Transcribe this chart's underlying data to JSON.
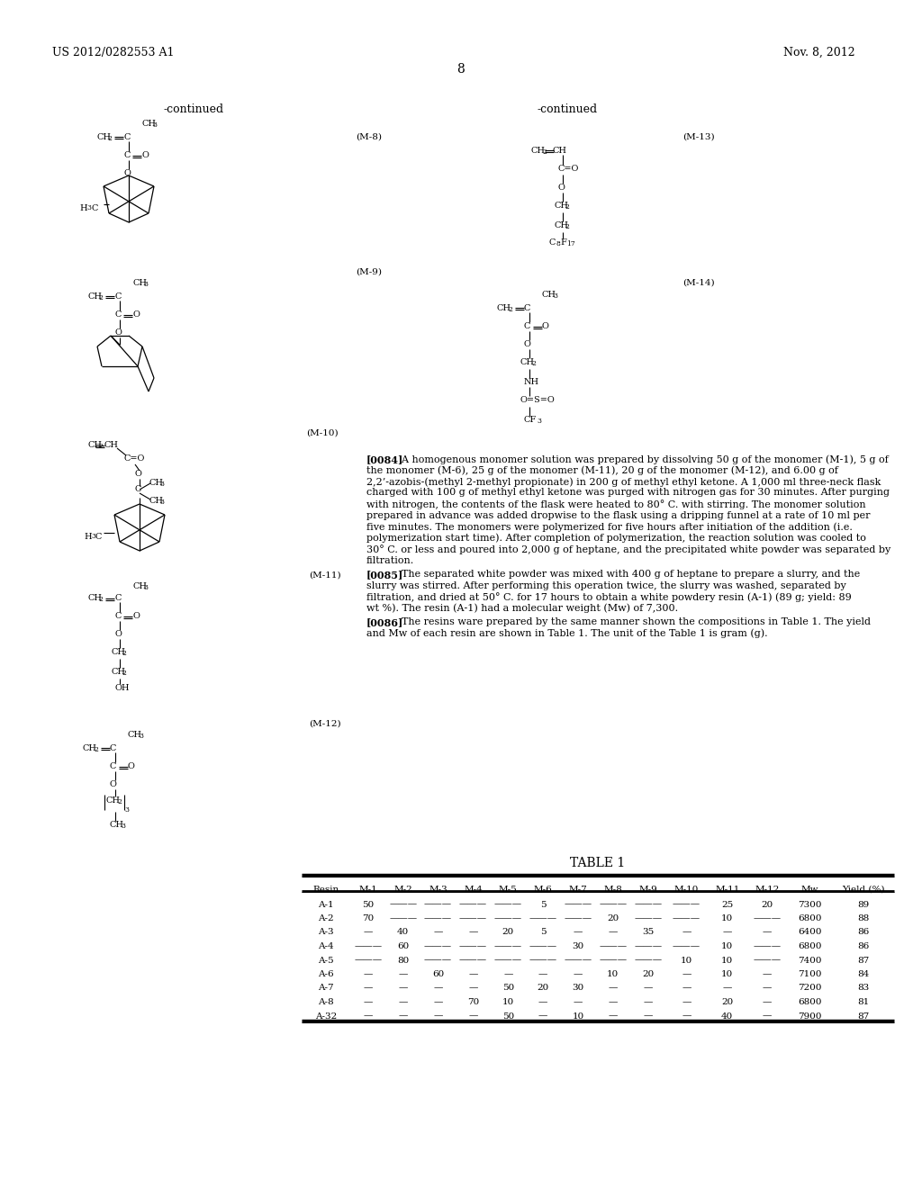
{
  "page_header_left": "US 2012/0282553 A1",
  "page_header_right": "Nov. 8, 2012",
  "page_number": "8",
  "background_color": "#ffffff",
  "continued_label": "-continued",
  "table_title": "TABLE 1",
  "table_headers": [
    "Resin",
    "M-1",
    "M-2",
    "M-3",
    "M-4",
    "M-5",
    "M-6",
    "M-7",
    "M-8",
    "M-9",
    "M-10",
    "M-11",
    "M-12",
    "Mw",
    "Yield (%)"
  ],
  "table_rows": [
    [
      "A-1",
      "50",
      "———",
      "———",
      "———",
      "———",
      "5",
      "———",
      "———",
      "———",
      "———",
      "25",
      "20",
      "7300",
      "89"
    ],
    [
      "A-2",
      "70",
      "———",
      "———",
      "———",
      "———",
      "———",
      "———",
      "20",
      "———",
      "———",
      "10",
      "———",
      "6800",
      "88"
    ],
    [
      "A-3",
      "—",
      "40",
      "—",
      "—",
      "20",
      "5",
      "—",
      "—",
      "35",
      "—",
      "—",
      "—",
      "6400",
      "86"
    ],
    [
      "A-4",
      "———",
      "60",
      "———",
      "———",
      "———",
      "———",
      "30",
      "———",
      "———",
      "———",
      "10",
      "———",
      "6800",
      "86"
    ],
    [
      "A-5",
      "———",
      "80",
      "———",
      "———",
      "———",
      "———",
      "———",
      "———",
      "———",
      "10",
      "10",
      "———",
      "7400",
      "87"
    ],
    [
      "A-6",
      "—",
      "—",
      "60",
      "—",
      "—",
      "—",
      "—",
      "10",
      "20",
      "—",
      "10",
      "—",
      "7100",
      "84"
    ],
    [
      "A-7",
      "—",
      "—",
      "—",
      "—",
      "50",
      "20",
      "30",
      "—",
      "—",
      "—",
      "—",
      "—",
      "7200",
      "83"
    ],
    [
      "A-8",
      "—",
      "—",
      "—",
      "70",
      "10",
      "—",
      "—",
      "—",
      "—",
      "—",
      "20",
      "—",
      "6800",
      "81"
    ],
    [
      "A-32",
      "—",
      "—",
      "—",
      "—",
      "50",
      "—",
      "10",
      "—",
      "—",
      "—",
      "40",
      "—",
      "7900",
      "87"
    ]
  ],
  "m_labels": [
    "(M-8)",
    "(M-9)",
    "(M-10)",
    "(M-11)",
    "(M-12)",
    "(M-13)",
    "(M-14)"
  ],
  "paragraph_0084_bold": "[0084]",
  "paragraph_0084_text": "    A homogenous monomer solution was prepared by dissolving 50 g of the monomer (M-1), 5 g of the monomer (M-6), 25 g of the monomer (M-11), 20 g of the monomer (M-12), and 6.00 g of 2,2’-azobis-(methyl 2-methyl propionate) in 200 g of methyl ethyl ketone. A 1,000 ml three-neck flask charged with 100 g of methyl ethyl ketone was purged with nitrogen gas for 30 minutes. After purging with nitrogen, the contents of the flask were heated to 80° C. with stirring. The monomer solution prepared in advance was added dropwise to the flask using a dripping funnel at a rate of 10 ml per five minutes. The monomers were polymerized for five hours after initiation of the addition (i.e. polymerization start time). After completion of polymerization, the reaction solution was cooled to 30° C. or less and poured into 2,000 g of heptane, and the precipitated white powder was separated by filtration.",
  "paragraph_0085_bold": "[0085]",
  "paragraph_0085_text": "    The separated white powder was mixed with 400 g of heptane to prepare a slurry, and the slurry was stirred. After performing this operation twice, the slurry was washed, separated by filtration, and dried at 50° C. for 17 hours to obtain a white powdery resin (A-1) (89 g; yield: 89 wt %). The resin (A-1) had a molecular weight (Mw) of 7,300.",
  "paragraph_0086_bold": "[0086]",
  "paragraph_0086_text": "    The resins ware prepared by the same manner shown the compositions in Table 1. The yield and Mw of each resin are shown in Table 1. The unit of the Table 1 is gram (g)."
}
